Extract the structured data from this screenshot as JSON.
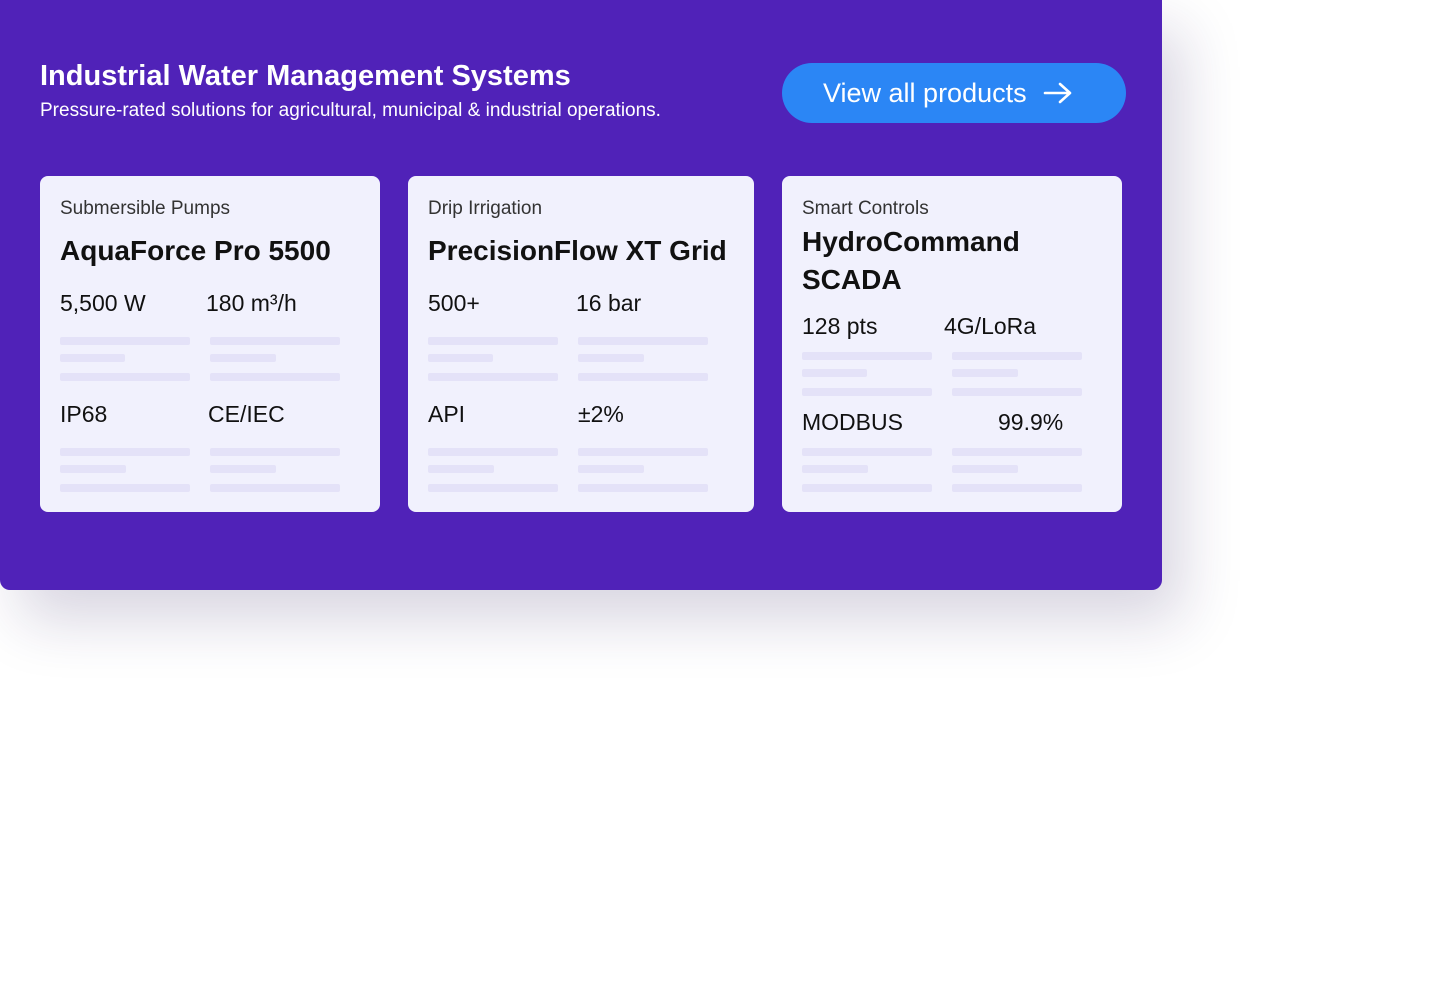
{
  "header": {
    "title": "Industrial Water Management Systems",
    "subtitle": "Pressure-rated solutions for agricultural, municipal & industrial operations.",
    "cta_label": "View all products",
    "cta_icon": "arrow-right-icon"
  },
  "colors": {
    "panel": "#5022b8",
    "button": "#2b86f5",
    "card": "#f1f1fd"
  },
  "cards": [
    {
      "category": "Submersible Pumps",
      "name": "AquaForce Pro 5500",
      "stats": [
        "5,500 W",
        "180 m³/h",
        "IP68",
        "CE/IEC"
      ]
    },
    {
      "category": "Drip Irrigation",
      "name": "PrecisionFlow XT Grid",
      "stats": [
        "500+",
        "16 bar",
        "API",
        "±2%"
      ]
    },
    {
      "category": "Smart Controls",
      "name": "HydroCommand SCADA",
      "stats": [
        "128 pts",
        "4G/LoRa",
        "MODBUS",
        "99.9%"
      ]
    }
  ]
}
